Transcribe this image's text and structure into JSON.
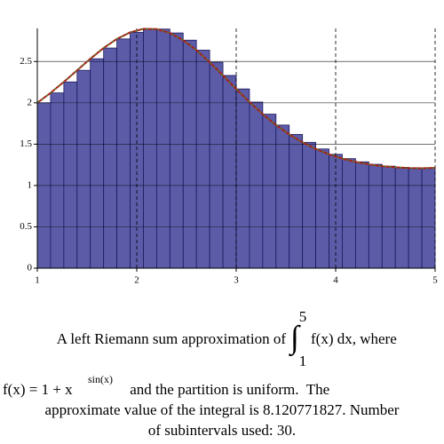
{
  "chart_data": {
    "type": "histogram",
    "bins": [
      1,
      1.1333,
      1.2667,
      1.4,
      1.5333,
      1.6667,
      1.8,
      1.9333,
      2.0667,
      2.2,
      2.3333,
      2.4667,
      2.6,
      2.7333,
      2.8667,
      3,
      3.1333,
      3.2667,
      3.4,
      3.5333,
      3.6667,
      3.8,
      3.9333,
      4.0667,
      4.2,
      4.3333,
      4.4667,
      4.6,
      4.7333,
      4.8667,
      5
    ],
    "counts": [
      2,
      2.12,
      2.253,
      2.393,
      2.533,
      2.663,
      2.773,
      2.852,
      2.894,
      2.892,
      2.845,
      2.758,
      2.637,
      2.491,
      2.331,
      2.168,
      2.009,
      1.863,
      1.731,
      1.618,
      1.522,
      1.442,
      1.377,
      1.325,
      1.286,
      1.256,
      1.234,
      1.22,
      1.211,
      1.209
    ],
    "color": "#5b5ba8",
    "edge_color": "#1a1a5e",
    "curve": {
      "color": "#b01818",
      "x": [
        1,
        1.1333,
        1.2667,
        1.4,
        1.5333,
        1.6667,
        1.8,
        1.9333,
        2.0667,
        2.2,
        2.3333,
        2.4667,
        2.6,
        2.7333,
        2.8667,
        3,
        3.1333,
        3.2667,
        3.4,
        3.5333,
        3.6667,
        3.8,
        3.9333,
        4.0667,
        4.2,
        4.3333,
        4.4667,
        4.6,
        4.7333,
        4.8667,
        5
      ],
      "values": [
        2,
        2.12,
        2.253,
        2.393,
        2.533,
        2.663,
        2.773,
        2.852,
        2.894,
        2.892,
        2.845,
        2.758,
        2.637,
        2.491,
        2.331,
        2.168,
        2.009,
        1.863,
        1.731,
        1.618,
        1.522,
        1.442,
        1.377,
        1.325,
        1.286,
        1.256,
        1.234,
        1.22,
        1.211,
        1.209,
        1.214
      ]
    },
    "xlim": [
      1,
      5
    ],
    "ylim": [
      0,
      2.9
    ],
    "xticks": [
      1,
      2,
      3,
      4,
      5
    ],
    "yticks": [
      0,
      0.5,
      1,
      1.5,
      2,
      2.5
    ],
    "grid": true,
    "caption": {
      "line1": "A left Riemann sum approximation of",
      "integral_upper": "5",
      "integral_lower": "1",
      "integrand": "f(x) dx, where",
      "line2": "f(x) = 1 + x",
      "exponent": "sin(x)",
      "line2_rest": " and the partition is uniform.  The",
      "line3": "approximate value of the integral is 8.120771827.  Number",
      "line4": "of subintervals used: 30."
    }
  }
}
